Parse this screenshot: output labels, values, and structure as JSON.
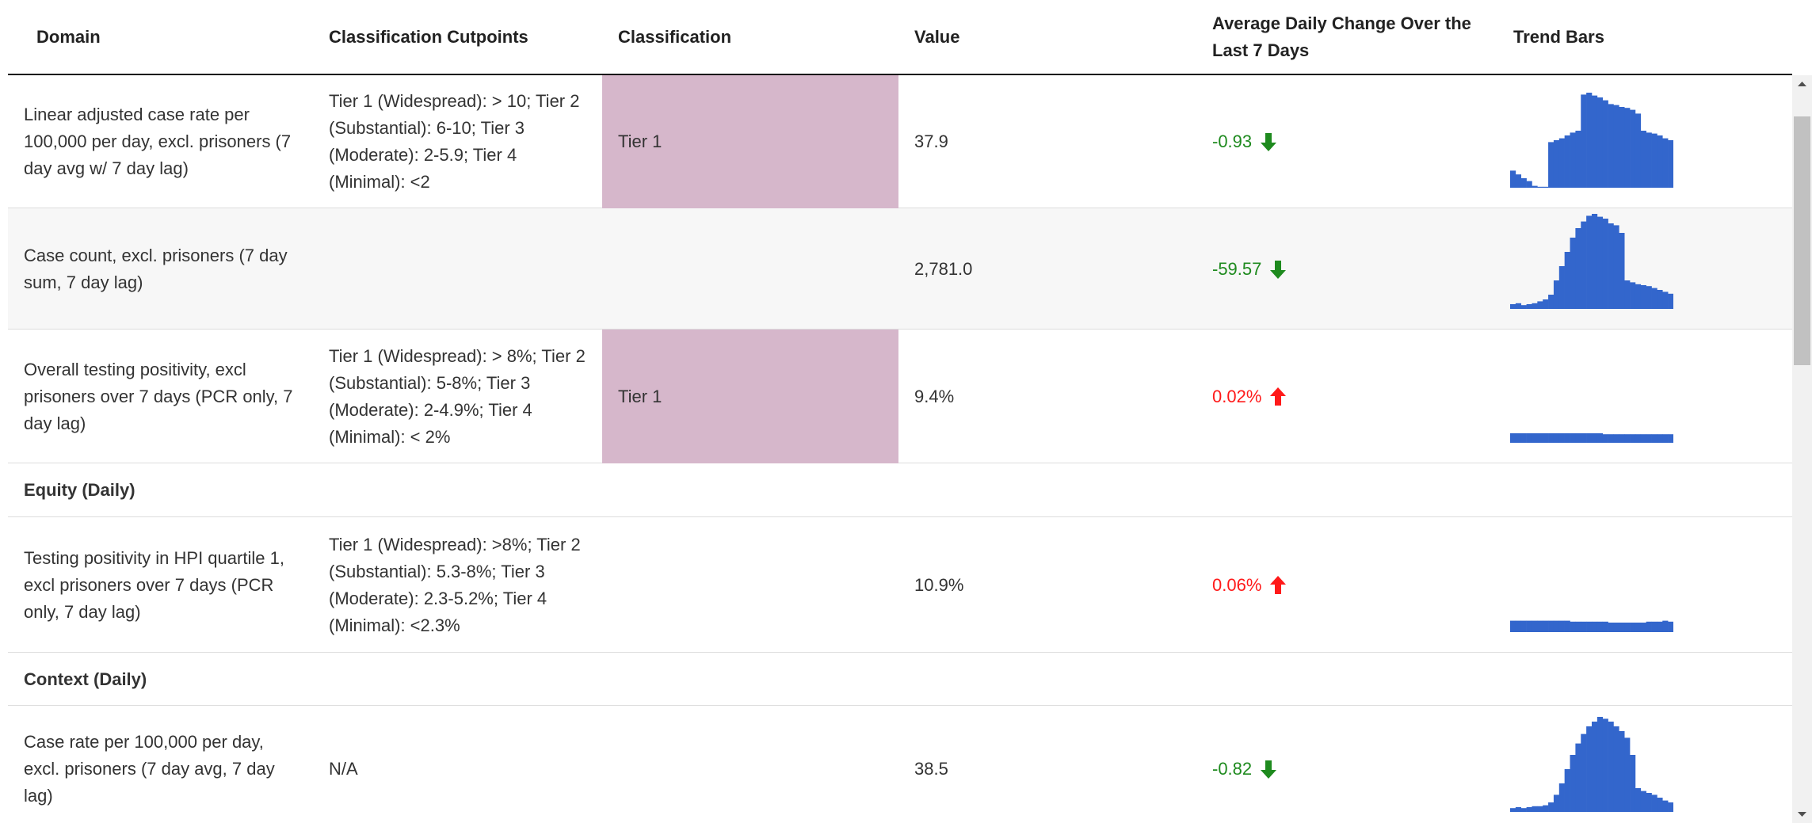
{
  "header": [
    "Domain",
    "Classification Cutpoints",
    "Classification",
    "Value",
    "Average Daily Change Over the Last 7 Days",
    "Trend Bars"
  ],
  "trend_color": "#3366cc",
  "rows": [
    {
      "domain": "Linear adjusted case rate per 100,000 per day, excl. prisoners (7 day avg w/ 7 day lag)",
      "cutpoints": "Tier 1 (Widespread): > 10; Tier 2 (Substantial): 6-10; Tier 3 (Moderate): 2-5.9; Tier 4 (Minimal): <2",
      "classification": "Tier 1",
      "classification_color": "#d6b7cb",
      "value": "37.9",
      "change": "-0.93",
      "trend": [
        18,
        14,
        10,
        7,
        2,
        1,
        1,
        48,
        50,
        52,
        55,
        58,
        60,
        98,
        100,
        97,
        95,
        92,
        88,
        87,
        85,
        84,
        82,
        78,
        60,
        58,
        57,
        55,
        52,
        50
      ]
    },
    {
      "domain": "Case count, excl. prisoners (7 day sum, 7 day lag)",
      "value": "2,781.0",
      "change": "-59.57",
      "trend": [
        5,
        6,
        4,
        5,
        6,
        8,
        10,
        15,
        30,
        45,
        60,
        75,
        85,
        92,
        98,
        100,
        97,
        95,
        90,
        88,
        80,
        30,
        28,
        26,
        25,
        24,
        22,
        20,
        18,
        16
      ]
    },
    {
      "domain": "Overall testing positivity, excl prisoners over 7 days (PCR only, 7 day lag)",
      "cutpoints": "Tier 1 (Widespread): > 8%; Tier 2 (Substantial): 5-8%; Tier 3 (Moderate): 2-4.9%; Tier 4 (Minimal): < 2%",
      "classification": "Tier 1",
      "classification_color": "#d6b7cb",
      "value": "9.4%",
      "change": "0.02%",
      "trend": [
        10,
        10,
        10,
        10,
        10,
        10,
        10,
        10,
        10,
        10,
        10,
        10,
        10,
        10,
        10,
        10,
        10,
        9,
        9,
        9,
        9,
        9,
        9,
        9,
        9,
        9,
        9,
        9,
        9,
        9
      ]
    },
    {
      "section": "Equity (Daily)"
    },
    {
      "domain": "Testing positivity in HPI quartile 1, excl prisoners over 7 days (PCR only, 7 day lag)",
      "cutpoints": "Tier 1 (Widespread): >8%; Tier 2 (Substantial): 5.3-8%; Tier 3 (Moderate): 2.3-5.2%; Tier 4 (Minimal): <2.3%",
      "value": "10.9%",
      "change": "0.06%",
      "trend": [
        12,
        12,
        12,
        12,
        12,
        12,
        12,
        12,
        12,
        12,
        12,
        11,
        11,
        11,
        11,
        11,
        11,
        11,
        10,
        10,
        10,
        10,
        10,
        10,
        10,
        11,
        11,
        11,
        12,
        11
      ]
    },
    {
      "section": "Context (Daily)"
    },
    {
      "domain": "Case rate per 100,000 per day, excl. prisoners (7 day avg, 7 day lag)",
      "cutpoints": "N/A",
      "value": "38.5",
      "change": "-0.82",
      "trend": [
        4,
        5,
        4,
        5,
        6,
        6,
        7,
        10,
        18,
        30,
        45,
        60,
        72,
        82,
        90,
        95,
        100,
        98,
        95,
        90,
        85,
        78,
        60,
        25,
        22,
        20,
        18,
        15,
        12,
        10
      ]
    }
  ]
}
